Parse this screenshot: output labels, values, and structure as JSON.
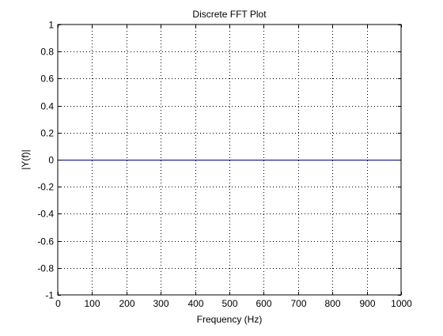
{
  "chart_data": {
    "type": "line",
    "title": "Discrete FFT Plot",
    "xlabel": "Frequency (Hz)",
    "ylabel": "|Y(f)|",
    "xlim": [
      0,
      1000
    ],
    "ylim": [
      -1,
      1
    ],
    "xticks": [
      0,
      100,
      200,
      300,
      400,
      500,
      600,
      700,
      800,
      900,
      1000
    ],
    "yticks": [
      -1,
      -0.8,
      -0.6,
      -0.4,
      -0.2,
      0,
      0.2,
      0.4,
      0.6,
      0.8,
      1
    ],
    "xtick_labels": [
      "0",
      "100",
      "200",
      "300",
      "400",
      "500",
      "600",
      "700",
      "800",
      "900",
      "1000"
    ],
    "ytick_labels": [
      "-1",
      "-0.8",
      "-0.6",
      "-0.4",
      "-0.2",
      "0",
      "0.2",
      "0.4",
      "0.6",
      "0.8",
      "1"
    ],
    "grid": true,
    "grid_style": "dotted",
    "series": [
      {
        "color": "#00007f",
        "x": [
          0,
          1000
        ],
        "y": [
          0,
          0
        ]
      }
    ]
  }
}
